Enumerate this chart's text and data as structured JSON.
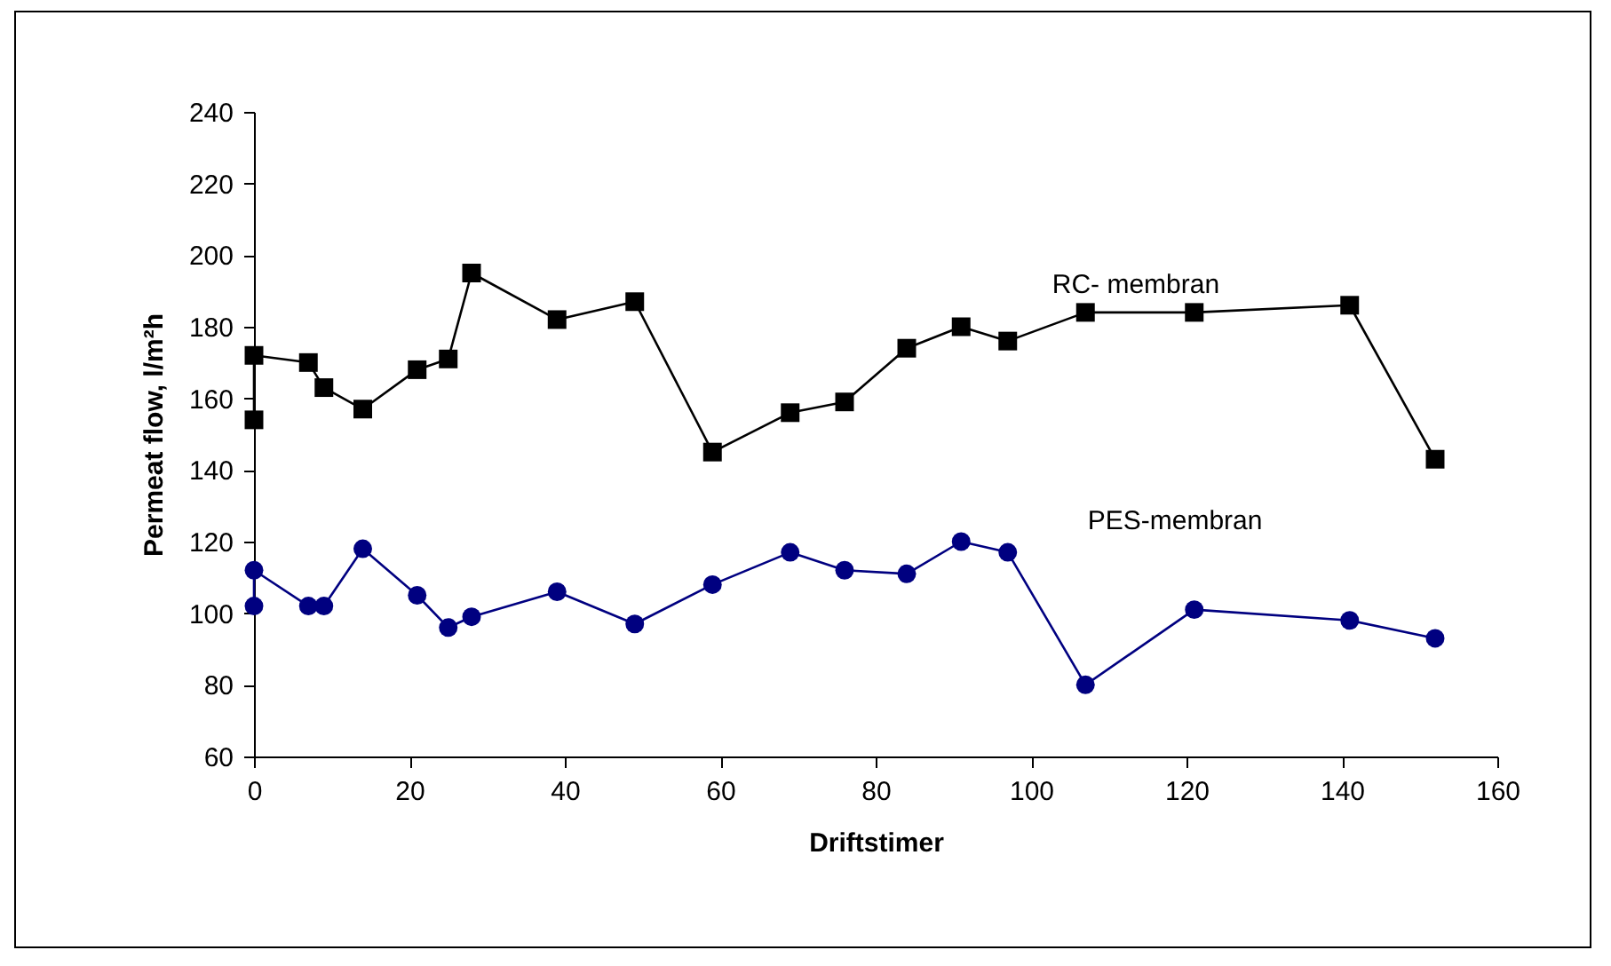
{
  "chart_data": {
    "type": "line",
    "xlabel": "Driftstimer",
    "ylabel": "Permeat flow, l/m²h",
    "xlim": [
      0,
      160
    ],
    "xticks": [
      0,
      20,
      40,
      60,
      80,
      100,
      120,
      140,
      160
    ],
    "ylim": [
      60,
      240
    ],
    "yticks": [
      60,
      80,
      100,
      120,
      140,
      160,
      180,
      200,
      220,
      240
    ],
    "grid": false,
    "line_style": "solid",
    "series": [
      {
        "name": "RC- membran",
        "color": "#000000",
        "marker": "square",
        "x": [
          0,
          0,
          7,
          9,
          14,
          21,
          25,
          28,
          39,
          49,
          59,
          69,
          76,
          84,
          91,
          97,
          107,
          121,
          141,
          152
        ],
        "values": [
          154,
          172,
          170,
          163,
          157,
          168,
          171,
          195,
          182,
          187,
          145,
          156,
          159,
          174,
          180,
          176,
          184,
          184,
          186,
          143
        ]
      },
      {
        "name": "PES-membran",
        "color": "#000080",
        "marker": "circle",
        "x": [
          0,
          0,
          7,
          9,
          14,
          21,
          25,
          28,
          39,
          49,
          59,
          69,
          76,
          84,
          91,
          97,
          107,
          121,
          141,
          152
        ],
        "values": [
          102,
          112,
          102,
          102,
          118,
          105,
          96,
          99,
          106,
          97,
          108,
          117,
          112,
          111,
          120,
          117,
          80,
          101,
          98,
          93
        ]
      }
    ]
  }
}
